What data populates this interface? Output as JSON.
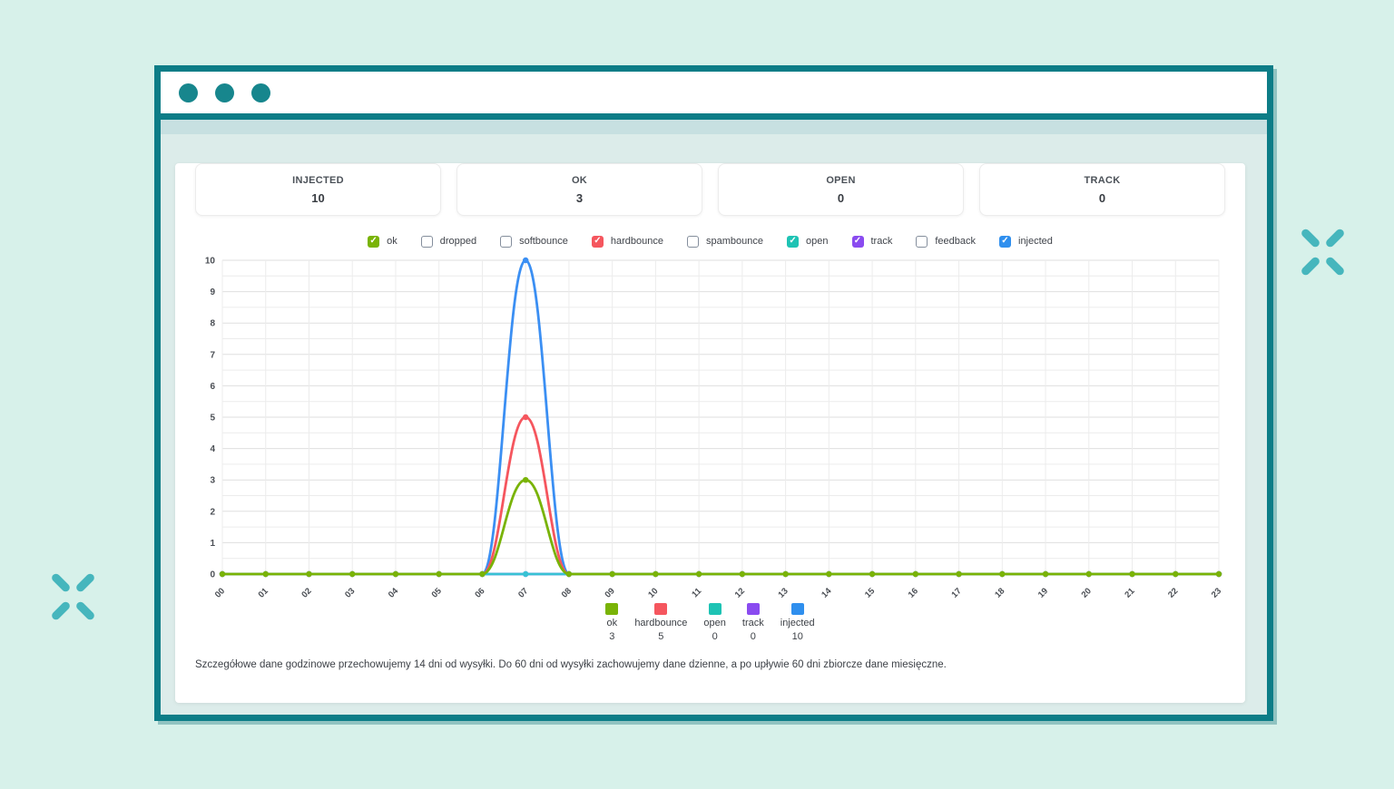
{
  "stats": [
    {
      "label": "INJECTED",
      "value": "10"
    },
    {
      "label": "OK",
      "value": "3"
    },
    {
      "label": "OPEN",
      "value": "0"
    },
    {
      "label": "TRACK",
      "value": "0"
    }
  ],
  "filters": [
    {
      "label": "ok",
      "checked": true,
      "color": "#79b306"
    },
    {
      "label": "dropped",
      "checked": false,
      "color": null
    },
    {
      "label": "softbounce",
      "checked": false,
      "color": null
    },
    {
      "label": "hardbounce",
      "checked": true,
      "color": "#f5565e"
    },
    {
      "label": "spambounce",
      "checked": false,
      "color": null
    },
    {
      "label": "open",
      "checked": true,
      "color": "#1ec3b4"
    },
    {
      "label": "track",
      "checked": true,
      "color": "#8a4bf0"
    },
    {
      "label": "feedback",
      "checked": false,
      "color": null
    },
    {
      "label": "injected",
      "checked": true,
      "color": "#2f8fee"
    }
  ],
  "chart_data": {
    "type": "line",
    "x": [
      "00",
      "01",
      "02",
      "03",
      "04",
      "05",
      "06",
      "07",
      "08",
      "09",
      "10",
      "11",
      "12",
      "13",
      "14",
      "15",
      "16",
      "17",
      "18",
      "19",
      "20",
      "21",
      "22",
      "23"
    ],
    "ylim": [
      0,
      10
    ],
    "yticks": [
      0,
      1,
      2,
      3,
      4,
      5,
      6,
      7,
      8,
      9,
      10
    ],
    "grid": true,
    "series": [
      {
        "name": "track",
        "color": "#8a4bf0",
        "values": [
          0,
          0,
          0,
          0,
          0,
          0,
          0,
          0,
          0,
          0,
          0,
          0,
          0,
          0,
          0,
          0,
          0,
          0,
          0,
          0,
          0,
          0,
          0,
          0
        ]
      },
      {
        "name": "injected",
        "color": "#3b8ff3",
        "values": [
          0,
          0,
          0,
          0,
          0,
          0,
          0,
          10,
          0,
          0,
          0,
          0,
          0,
          0,
          0,
          0,
          0,
          0,
          0,
          0,
          0,
          0,
          0,
          0
        ]
      },
      {
        "name": "hardbounce",
        "color": "#f5565e",
        "values": [
          0,
          0,
          0,
          0,
          0,
          0,
          0,
          5,
          0,
          0,
          0,
          0,
          0,
          0,
          0,
          0,
          0,
          0,
          0,
          0,
          0,
          0,
          0,
          0
        ]
      },
      {
        "name": "open",
        "color": "#38c2d4",
        "values": [
          0,
          0,
          0,
          0,
          0,
          0,
          0,
          0,
          0,
          0,
          0,
          0,
          0,
          0,
          0,
          0,
          0,
          0,
          0,
          0,
          0,
          0,
          0,
          0
        ]
      },
      {
        "name": "ok",
        "color": "#79b306",
        "values": [
          0,
          0,
          0,
          0,
          0,
          0,
          0,
          3,
          0,
          0,
          0,
          0,
          0,
          0,
          0,
          0,
          0,
          0,
          0,
          0,
          0,
          0,
          0,
          0
        ]
      }
    ]
  },
  "summary_legend": [
    {
      "label": "ok",
      "value": "3",
      "color": "#79b306"
    },
    {
      "label": "hardbounce",
      "value": "5",
      "color": "#f5565e"
    },
    {
      "label": "open",
      "value": "0",
      "color": "#1ec3b4"
    },
    {
      "label": "track",
      "value": "0",
      "color": "#8a4bf0"
    },
    {
      "label": "injected",
      "value": "10",
      "color": "#2f8fee"
    }
  ],
  "footer_note": "Szczegółowe dane godzinowe przechowujemy 14 dni od wysyłki. Do 60 dni od wysyłki zachowujemy dane dzienne, a po upływie 60 dni zbiorcze dane miesięczne.",
  "colors": {
    "frame": "#0c7d87",
    "dot": "#17868d",
    "page_bg": "#d7f1ea",
    "content_bg": "#dcecea",
    "strip_bg": "#c7e0e1",
    "decor": "#46b6bd",
    "grid_major": "#dfdfdf",
    "grid_minor": "#ececec",
    "axis_text": "#4a4e54"
  }
}
